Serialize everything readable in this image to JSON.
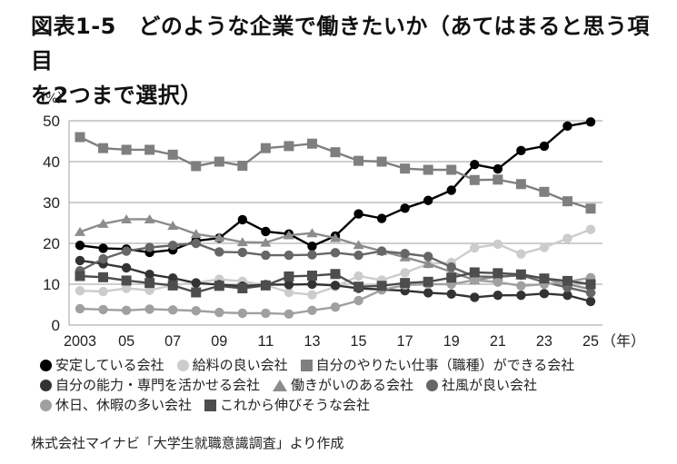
{
  "title": {
    "line1": "図表1-5　どのような企業で働きたいか（あてはまると思う項目",
    "line2": "を2つまで選択）"
  },
  "unit_label": "（%）",
  "source": "株式会社マイナビ「大学生就職意識調査」より作成",
  "chart_data": {
    "type": "line",
    "title": "どのような企業で働きたいか（あてはまると思う項目を2つまで選択）",
    "xlabel": "（年）",
    "ylabel": "（%）",
    "ylim": [
      0,
      50
    ],
    "yticks": [
      0,
      10,
      20,
      30,
      40,
      50
    ],
    "grid": true,
    "legend_position": "bottom",
    "x": [
      2003,
      2004,
      2005,
      2006,
      2007,
      2008,
      2009,
      2010,
      2011,
      2012,
      2013,
      2014,
      2015,
      2016,
      2017,
      2018,
      2019,
      2020,
      2021,
      2022,
      2023,
      2024,
      2025
    ],
    "xtick_labels": [
      "2003",
      "05",
      "07",
      "09",
      "11",
      "13",
      "15",
      "17",
      "19",
      "21",
      "23",
      "25"
    ],
    "series": [
      {
        "name": "安定している会社",
        "marker": "circle",
        "color": "#000000",
        "values": [
          19.5,
          18.8,
          18.6,
          17.8,
          18.4,
          20.6,
          21.3,
          25.8,
          22.9,
          22.3,
          19.3,
          21.8,
          27.2,
          26.1,
          28.6,
          30.5,
          33.0,
          39.3,
          38.2,
          42.7,
          43.8,
          48.7,
          49.7
        ]
      },
      {
        "name": "給料の良い会社",
        "marker": "circle",
        "color": "#cccccc",
        "values": [
          8.4,
          8.2,
          9.0,
          8.5,
          9.8,
          10.4,
          11.2,
          10.7,
          9.8,
          8.0,
          7.4,
          9.4,
          12.0,
          11.0,
          12.8,
          15.0,
          15.3,
          18.9,
          19.8,
          17.4,
          19.0,
          21.2,
          23.4
        ]
      },
      {
        "name": "自分のやりたい仕事（職種）ができる会社",
        "marker": "square",
        "color": "#7f7f7f",
        "values": [
          46.0,
          43.3,
          42.9,
          42.9,
          41.7,
          38.9,
          40.0,
          39.0,
          43.3,
          43.8,
          44.4,
          42.3,
          40.2,
          40.0,
          38.3,
          38.0,
          38.0,
          35.5,
          35.6,
          34.5,
          32.6,
          30.3,
          28.5
        ]
      },
      {
        "name": "自分の能力・専門を活かせる会社",
        "marker": "circle",
        "color": "#333333",
        "values": [
          15.8,
          15.0,
          14.0,
          12.4,
          11.5,
          10.3,
          9.9,
          9.5,
          9.9,
          9.9,
          10.0,
          9.7,
          9.0,
          8.7,
          8.4,
          7.9,
          7.6,
          6.8,
          7.3,
          7.3,
          7.7,
          7.3,
          5.8
        ]
      },
      {
        "name": "働きがいのある会社",
        "marker": "triangle",
        "color": "#8c8c8c",
        "values": [
          22.8,
          24.8,
          25.9,
          25.9,
          24.3,
          22.3,
          21.4,
          20.3,
          20.2,
          22.0,
          22.5,
          21.3,
          19.6,
          18.1,
          16.6,
          15.0,
          13.0,
          11.0,
          11.9,
          12.2,
          11.4,
          10.0,
          8.8
        ]
      },
      {
        "name": "社風が良い会社",
        "marker": "circle",
        "color": "#666666",
        "values": [
          13.3,
          16.2,
          18.1,
          19.0,
          19.5,
          20.0,
          17.9,
          17.8,
          17.1,
          17.1,
          17.2,
          17.7,
          17.1,
          18.1,
          17.5,
          16.8,
          14.2,
          11.9,
          11.8,
          12.2,
          10.5,
          9.2,
          7.9
        ]
      },
      {
        "name": "休日、休暇の多い会社",
        "marker": "circle",
        "color": "#a0a0a0",
        "values": [
          4.0,
          3.8,
          3.6,
          3.9,
          3.7,
          3.5,
          3.1,
          2.9,
          2.9,
          2.7,
          3.6,
          4.4,
          6.0,
          8.6,
          9.8,
          10.0,
          10.0,
          11.0,
          10.5,
          9.6,
          10.0,
          10.6,
          11.6
        ]
      },
      {
        "name": "これから伸びそうな会社",
        "marker": "square",
        "color": "#4d4d4d",
        "values": [
          12.0,
          11.7,
          10.9,
          10.3,
          9.7,
          8.0,
          9.6,
          9.0,
          9.7,
          11.9,
          12.1,
          12.5,
          9.4,
          9.6,
          10.3,
          10.6,
          11.6,
          12.9,
          12.7,
          12.4,
          11.4,
          10.8,
          10.0
        ]
      }
    ]
  },
  "legend": {
    "rows": [
      [
        {
          "label": "安定している会社",
          "shape": "circle",
          "color": "#000000"
        },
        {
          "label": "給料の良い会社",
          "shape": "circle",
          "color": "#cccccc"
        },
        {
          "label": "自分のやりたい仕事（職種）ができる会社",
          "shape": "square",
          "color": "#7f7f7f"
        }
      ],
      [
        {
          "label": "自分の能力・専門を活かせる会社",
          "shape": "circle",
          "color": "#333333"
        },
        {
          "label": "働きがいのある会社",
          "shape": "triangle",
          "color": "#8c8c8c"
        },
        {
          "label": "社風が良い会社",
          "shape": "circle",
          "color": "#666666"
        }
      ],
      [
        {
          "label": "休日、休暇の多い会社",
          "shape": "circle",
          "color": "#a0a0a0"
        },
        {
          "label": "これから伸びそうな会社",
          "shape": "square",
          "color": "#4d4d4d"
        }
      ]
    ]
  }
}
